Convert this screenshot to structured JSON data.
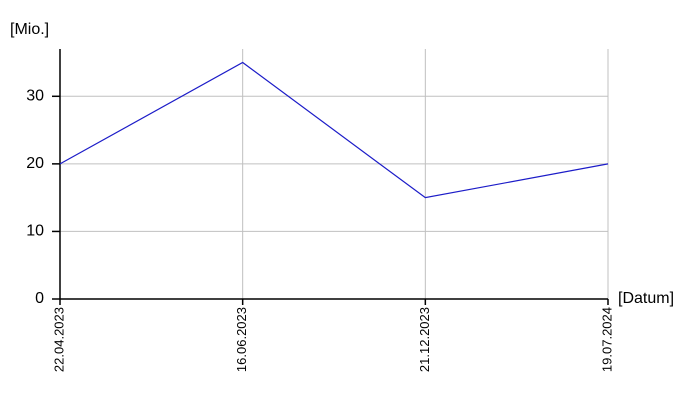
{
  "chart_data": {
    "type": "line",
    "y_axis_label": "[Mio.]",
    "x_axis_label": "[Datum]",
    "categories": [
      "22.04.2023",
      "16.06.2023",
      "21.12.2023",
      "19.07.2024"
    ],
    "values": [
      20,
      35,
      15,
      20
    ],
    "color": "#1c1cc8",
    "ylim": [
      0,
      37
    ],
    "yticks": [
      0,
      10,
      20,
      30
    ],
    "grid": true
  }
}
